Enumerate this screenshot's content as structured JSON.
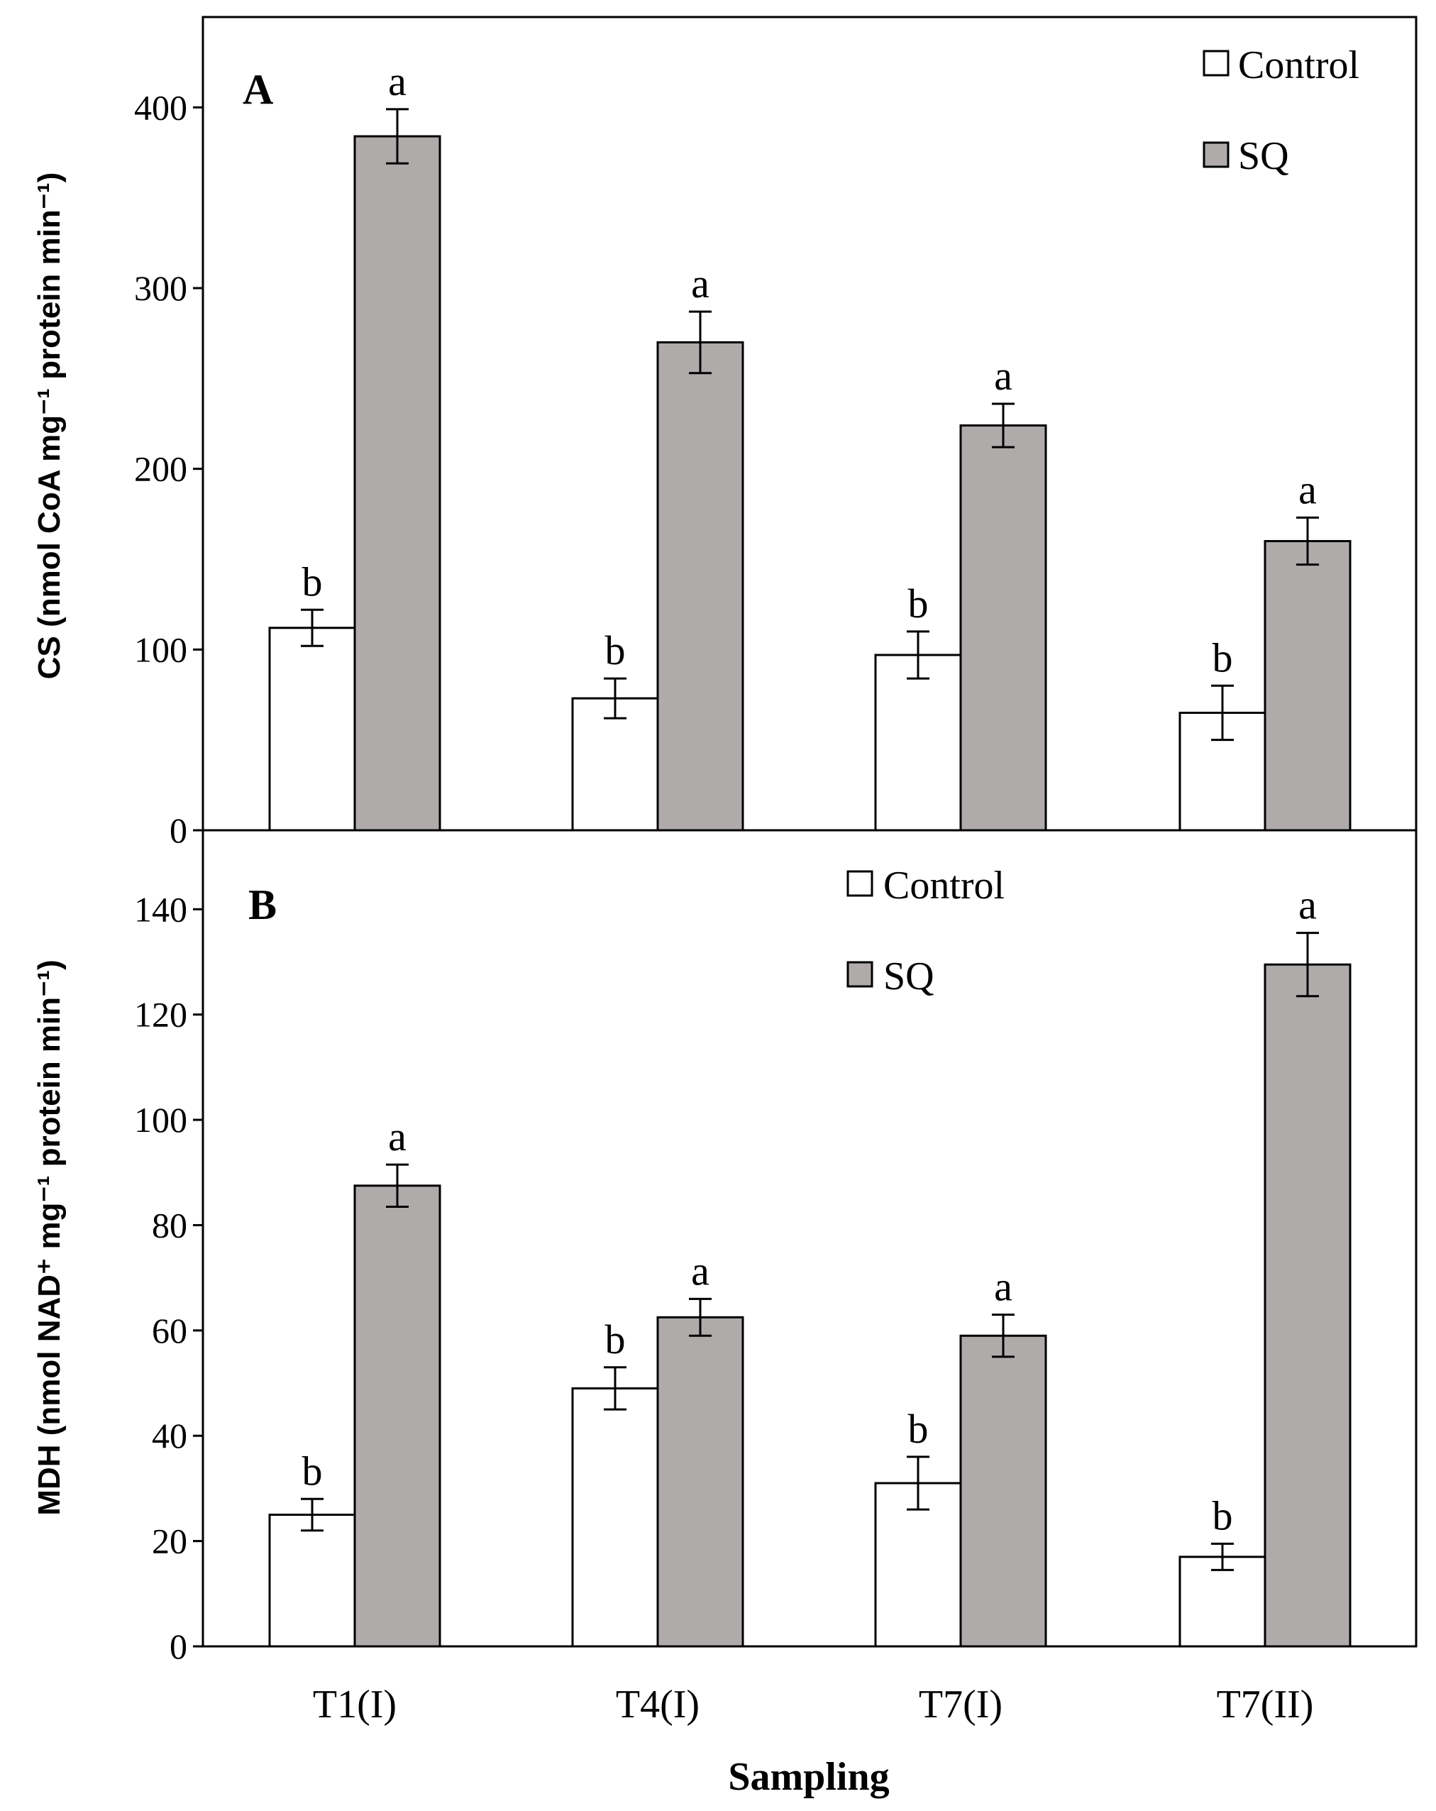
{
  "chart_data": [
    {
      "type": "bar",
      "panel_label": "A",
      "categories": [
        "T1(I)",
        "T4(I)",
        "T7(I)",
        "T7(II)"
      ],
      "series": [
        {
          "name": "Control",
          "color": "#ffffff",
          "values": [
            112,
            73,
            97,
            65
          ],
          "errors": [
            10,
            11,
            13,
            15
          ],
          "significance": [
            "b",
            "b",
            "b",
            "b"
          ]
        },
        {
          "name": "SQ",
          "color": "#b0abab",
          "values": [
            384,
            270,
            224,
            160
          ],
          "errors": [
            15,
            17,
            12,
            13
          ],
          "significance": [
            "a",
            "a",
            "a",
            "a"
          ]
        }
      ],
      "ylabel": "CS (nmol CoA mg⁻¹ protein min⁻¹)",
      "ylim": [
        0,
        450
      ],
      "yticks": [
        "0",
        "100",
        "200",
        "300",
        "400"
      ],
      "ytick_values": [
        0,
        100,
        200,
        300,
        400
      ],
      "legend_position": "top-right"
    },
    {
      "type": "bar",
      "panel_label": "B",
      "categories": [
        "T1(I)",
        "T4(I)",
        "T7(I)",
        "T7(II)"
      ],
      "series": [
        {
          "name": "Control",
          "color": "#ffffff",
          "values": [
            25,
            49,
            31,
            17
          ],
          "errors": [
            3,
            4,
            5,
            2.5
          ],
          "significance": [
            "b",
            "b",
            "b",
            "b"
          ]
        },
        {
          "name": "SQ",
          "color": "#b0abab",
          "values": [
            87.5,
            62.5,
            59,
            129.5
          ],
          "errors": [
            4,
            3.5,
            4,
            6
          ],
          "significance": [
            "a",
            "a",
            "a",
            "a"
          ]
        }
      ],
      "ylabel": "MDH (nmol NAD⁺ mg⁻¹ protein min⁻¹)",
      "ylim": [
        0,
        155
      ],
      "yticks": [
        "0",
        "20",
        "40",
        "60",
        "80",
        "100",
        "120",
        "140"
      ],
      "ytick_values": [
        0,
        20,
        40,
        60,
        80,
        100,
        120,
        140
      ],
      "legend_position": "top-center",
      "xlabel": "Sampling"
    }
  ]
}
